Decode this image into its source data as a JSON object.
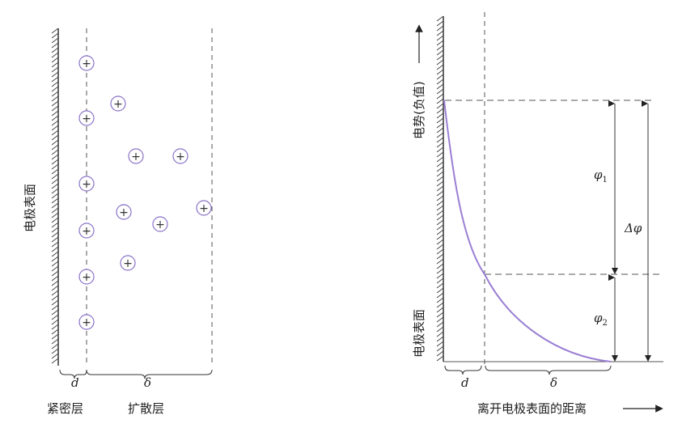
{
  "left_panel": {
    "electrode_label": "电极表面",
    "compact_label": "紧密层",
    "diffuse_label": "扩散层",
    "d_symbol": "d",
    "delta_symbol": "δ",
    "ion_symbol": "+",
    "ion_color": "#8a72c8"
  },
  "right_panel": {
    "y_axis_label": "电势(负值)",
    "electrode_label": "电极表面",
    "x_axis_label": "离开电极表面的距离",
    "d_symbol": "d",
    "delta_symbol": "δ",
    "phi1_label": "φ",
    "phi1_sub": "1",
    "phi2_label": "φ",
    "phi2_sub": "2",
    "dphi_label": "Δφ",
    "curve_color": "#9b7fd4"
  }
}
